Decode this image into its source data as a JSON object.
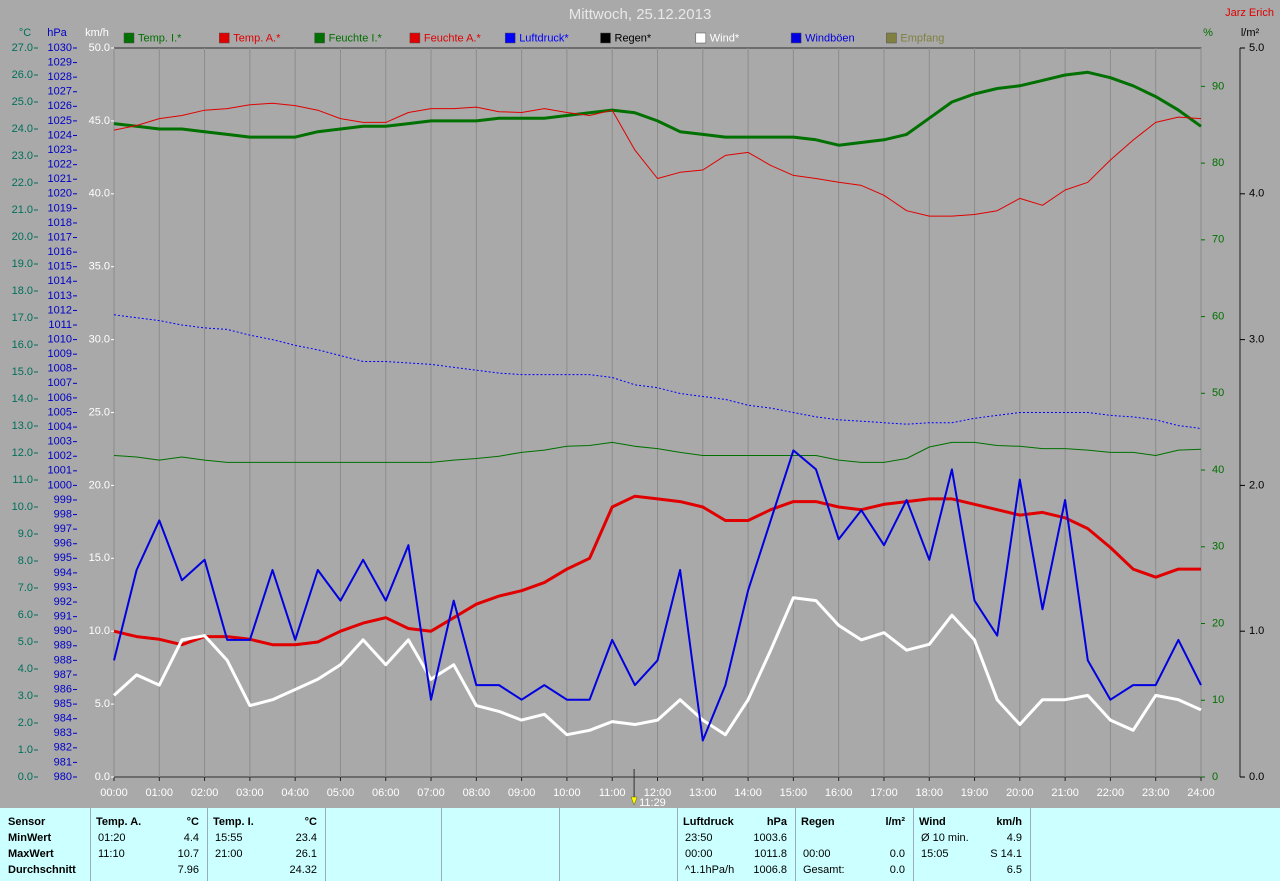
{
  "chart_data": {
    "type": "line",
    "title": "Mittwoch, 25.12.2013",
    "author": "Jarz Erich",
    "grid": "x",
    "xlim": [
      0,
      24
    ],
    "xticks": [
      {
        "value": 0,
        "label": "00:00"
      },
      {
        "value": 1,
        "label": "01:00"
      },
      {
        "value": 2,
        "label": "02:00"
      },
      {
        "value": 3,
        "label": "03:00"
      },
      {
        "value": 4,
        "label": "04:00"
      },
      {
        "value": 5,
        "label": "05:00"
      },
      {
        "value": 6,
        "label": "06:00"
      },
      {
        "value": 7,
        "label": "07:00"
      },
      {
        "value": 8,
        "label": "08:00"
      },
      {
        "value": 9,
        "label": "09:00"
      },
      {
        "value": 10,
        "label": "10:00"
      },
      {
        "value": 11,
        "label": "11:00"
      },
      {
        "value": 12,
        "label": "12:00"
      },
      {
        "value": 13,
        "label": "13:00"
      },
      {
        "value": 14,
        "label": "14:00"
      },
      {
        "value": 15,
        "label": "15:00"
      },
      {
        "value": 16,
        "label": "16:00"
      },
      {
        "value": 17,
        "label": "17:00"
      },
      {
        "value": 18,
        "label": "18:00"
      },
      {
        "value": 19,
        "label": "19:00"
      },
      {
        "value": 20,
        "label": "20:00"
      },
      {
        "value": 21,
        "label": "21:00"
      },
      {
        "value": 22,
        "label": "22:00"
      },
      {
        "value": 23,
        "label": "23:00"
      },
      {
        "value": 24,
        "label": "24:00"
      }
    ],
    "cursor": {
      "value": 11.4833,
      "label": "11:29"
    },
    "x": [
      0,
      0.5,
      1,
      1.5,
      2,
      2.5,
      3,
      3.5,
      4,
      4.5,
      5,
      5.5,
      6,
      6.5,
      7,
      7.5,
      8,
      8.5,
      9,
      9.5,
      10,
      10.5,
      11,
      11.5,
      12,
      12.5,
      13,
      13.5,
      14,
      14.5,
      15,
      15.5,
      16,
      16.5,
      17,
      17.5,
      18,
      18.5,
      19,
      19.5,
      20,
      20.5,
      21,
      21.5,
      22,
      22.5,
      23,
      23.5,
      24
    ],
    "axes": [
      {
        "title": "°C",
        "side": "left",
        "color": "#006f5a",
        "lim": [
          0,
          27
        ],
        "ticks": [
          {
            "value": 0,
            "label": "0.0"
          },
          {
            "value": 1,
            "label": "1.0"
          },
          {
            "value": 2,
            "label": "2.0"
          },
          {
            "value": 3,
            "label": "3.0"
          },
          {
            "value": 4,
            "label": "4.0"
          },
          {
            "value": 5,
            "label": "5.0"
          },
          {
            "value": 6,
            "label": "6.0"
          },
          {
            "value": 7,
            "label": "7.0"
          },
          {
            "value": 8,
            "label": "8.0"
          },
          {
            "value": 9,
            "label": "9.0"
          },
          {
            "value": 10,
            "label": "10.0"
          },
          {
            "value": 11,
            "label": "11.0"
          },
          {
            "value": 12,
            "label": "12.0"
          },
          {
            "value": 13,
            "label": "13.0"
          },
          {
            "value": 14,
            "label": "14.0"
          },
          {
            "value": 15,
            "label": "15.0"
          },
          {
            "value": 16,
            "label": "16.0"
          },
          {
            "value": 17,
            "label": "17.0"
          },
          {
            "value": 18,
            "label": "18.0"
          },
          {
            "value": 19,
            "label": "19.0"
          },
          {
            "value": 20,
            "label": "20.0"
          },
          {
            "value": 21,
            "label": "21.0"
          },
          {
            "value": 22,
            "label": "22.0"
          },
          {
            "value": 23,
            "label": "23.0"
          },
          {
            "value": 24,
            "label": "24.0"
          },
          {
            "value": 25,
            "label": "25.0"
          },
          {
            "value": 26,
            "label": "26.0"
          },
          {
            "value": 27,
            "label": "27.0"
          }
        ]
      },
      {
        "title": "hPa",
        "side": "left",
        "color": "#0000c8",
        "lim": [
          980,
          1030
        ],
        "ticks": [
          980,
          981,
          982,
          983,
          984,
          985,
          986,
          987,
          988,
          989,
          990,
          991,
          992,
          993,
          994,
          995,
          996,
          997,
          998,
          999,
          1000,
          1001,
          1002,
          1003,
          1004,
          1005,
          1006,
          1007,
          1008,
          1009,
          1010,
          1011,
          1012,
          1013,
          1014,
          1015,
          1016,
          1017,
          1018,
          1019,
          1020,
          1021,
          1022,
          1023,
          1024,
          1025,
          1026,
          1027,
          1028,
          1029,
          1030
        ]
      },
      {
        "title": "km/h",
        "side": "left",
        "color": "#ffffff",
        "lim": [
          0,
          50
        ],
        "ticks": [
          {
            "value": 0,
            "label": "0.0"
          },
          {
            "value": 5,
            "label": "5.0"
          },
          {
            "value": 10,
            "label": "10.0"
          },
          {
            "value": 15,
            "label": "15.0"
          },
          {
            "value": 20,
            "label": "20.0"
          },
          {
            "value": 25,
            "label": "25.0"
          },
          {
            "value": 30,
            "label": "30.0"
          },
          {
            "value": 35,
            "label": "35.0"
          },
          {
            "value": 40,
            "label": "40.0"
          },
          {
            "value": 45,
            "label": "45.0"
          },
          {
            "value": 50,
            "label": "50.0"
          }
        ]
      },
      {
        "title": "%",
        "side": "right",
        "color": "#007000",
        "lim": [
          0,
          95
        ],
        "ticks": [
          0,
          10,
          20,
          30,
          40,
          50,
          60,
          70,
          80,
          90
        ]
      },
      {
        "title": "l/m²",
        "side": "right",
        "color": "#000000",
        "lim": [
          0,
          5
        ],
        "ticks": [
          {
            "value": 0,
            "label": "0.0"
          },
          {
            "value": 1,
            "label": "1.0"
          },
          {
            "value": 2,
            "label": "2.0"
          },
          {
            "value": 3,
            "label": "3.0"
          },
          {
            "value": 4,
            "label": "4.0"
          },
          {
            "value": 5,
            "label": "5.0"
          }
        ]
      }
    ],
    "series": [
      {
        "name": "Temp. I.*",
        "color": "#007000",
        "axis": 0,
        "width": 3,
        "values": [
          24.2,
          24.1,
          24.0,
          24.0,
          23.9,
          23.8,
          23.7,
          23.7,
          23.7,
          23.9,
          24.0,
          24.1,
          24.1,
          24.2,
          24.3,
          24.3,
          24.3,
          24.4,
          24.4,
          24.4,
          24.5,
          24.6,
          24.7,
          24.6,
          24.3,
          23.9,
          23.8,
          23.7,
          23.7,
          23.7,
          23.7,
          23.6,
          23.4,
          23.5,
          23.6,
          23.8,
          24.4,
          25.0,
          25.3,
          25.5,
          25.6,
          25.8,
          26.0,
          26.1,
          25.9,
          25.6,
          25.2,
          24.7,
          24.1
        ]
      },
      {
        "name": "Temp. A.*",
        "color": "#e00000",
        "axis": 0,
        "width": 3,
        "values": [
          5.4,
          5.2,
          5.1,
          4.9,
          5.2,
          5.2,
          5.1,
          4.9,
          4.9,
          5.0,
          5.4,
          5.7,
          5.9,
          5.5,
          5.4,
          5.9,
          6.4,
          6.7,
          6.9,
          7.2,
          7.7,
          8.1,
          10.0,
          10.4,
          10.3,
          10.2,
          10.0,
          9.5,
          9.5,
          9.9,
          10.2,
          10.2,
          10.0,
          9.9,
          10.1,
          10.2,
          10.3,
          10.3,
          10.1,
          9.9,
          9.7,
          9.8,
          9.6,
          9.2,
          8.5,
          7.7,
          7.4,
          7.7,
          7.7
        ]
      },
      {
        "name": "Feuchte I.*",
        "color": "#007000",
        "axis": 3,
        "width": 1,
        "values": [
          41.9,
          41.7,
          41.3,
          41.7,
          41.3,
          41.0,
          41.0,
          41.0,
          41.0,
          41.0,
          41.0,
          41.0,
          41.0,
          41.0,
          41.0,
          41.3,
          41.5,
          41.8,
          42.3,
          42.6,
          43.1,
          43.2,
          43.6,
          43.1,
          42.8,
          42.3,
          41.9,
          41.9,
          41.9,
          41.9,
          41.9,
          41.9,
          41.3,
          41.0,
          41.0,
          41.5,
          43.0,
          43.6,
          43.6,
          43.2,
          43.1,
          42.8,
          42.8,
          42.6,
          42.3,
          42.3,
          41.9,
          42.6,
          42.7
        ]
      },
      {
        "name": "Feuchte A.*",
        "color": "#e00000",
        "axis": 3,
        "width": 1,
        "values": [
          84.3,
          84.9,
          85.8,
          86.2,
          86.9,
          87.1,
          87.6,
          87.8,
          87.5,
          86.9,
          85.8,
          85.3,
          85.3,
          86.6,
          87.1,
          87.1,
          87.3,
          86.7,
          86.6,
          87.1,
          86.6,
          86.2,
          86.9,
          81.7,
          78.0,
          78.8,
          79.1,
          81.0,
          81.4,
          79.7,
          78.4,
          78.0,
          77.5,
          77.1,
          75.8,
          73.8,
          73.1,
          73.1,
          73.3,
          73.8,
          75.4,
          74.5,
          76.5,
          77.5,
          80.4,
          83.0,
          85.3,
          86.0,
          85.8
        ]
      },
      {
        "name": "Luftdruck*",
        "color": "#0000ff",
        "axis": 1,
        "width": 1,
        "dash": true,
        "values": [
          1011.7,
          1011.5,
          1011.3,
          1011.0,
          1010.8,
          1010.7,
          1010.3,
          1010.0,
          1009.6,
          1009.3,
          1008.9,
          1008.5,
          1008.5,
          1008.4,
          1008.3,
          1008.1,
          1007.9,
          1007.7,
          1007.6,
          1007.6,
          1007.6,
          1007.6,
          1007.4,
          1006.9,
          1006.7,
          1006.3,
          1006.1,
          1005.9,
          1005.5,
          1005.3,
          1005.0,
          1004.7,
          1004.5,
          1004.4,
          1004.3,
          1004.2,
          1004.3,
          1004.3,
          1004.6,
          1004.8,
          1005.0,
          1005.0,
          1005.0,
          1005.0,
          1004.8,
          1004.7,
          1004.5,
          1004.1,
          1003.9
        ]
      },
      {
        "name": "Regen*",
        "color": "#000000"
      },
      {
        "name": "Wind*",
        "color": "#ffffff",
        "axis": 2,
        "width": 3,
        "values": [
          5.6,
          7.0,
          6.3,
          9.4,
          9.7,
          8.0,
          4.9,
          5.3,
          6.0,
          6.7,
          7.7,
          9.4,
          7.7,
          9.4,
          6.7,
          7.7,
          4.9,
          4.5,
          3.9,
          4.3,
          2.9,
          3.2,
          3.8,
          3.6,
          3.9,
          5.3,
          3.9,
          2.9,
          5.3,
          8.7,
          12.3,
          12.1,
          10.4,
          9.4,
          9.9,
          8.7,
          9.1,
          11.1,
          9.4,
          5.3,
          3.6,
          5.3,
          5.3,
          5.6,
          3.9,
          3.2,
          5.6,
          5.3,
          4.6
        ]
      },
      {
        "name": "Windböen",
        "color": "#0000e0",
        "axis": 2,
        "width": 2,
        "values": [
          8.0,
          14.2,
          17.6,
          13.5,
          14.9,
          9.4,
          9.4,
          14.2,
          9.4,
          14.2,
          12.1,
          14.9,
          12.1,
          15.9,
          5.3,
          12.1,
          6.3,
          6.3,
          5.3,
          6.3,
          5.3,
          5.3,
          9.4,
          6.3,
          8.0,
          14.2,
          2.5,
          6.3,
          12.8,
          17.6,
          22.4,
          21.1,
          16.3,
          18.3,
          15.9,
          19.0,
          14.9,
          21.1,
          12.1,
          9.7,
          20.4,
          11.5,
          19.0,
          8.0,
          5.3,
          6.3,
          6.3,
          9.4,
          6.3
        ]
      },
      {
        "name": "Empfang",
        "color": "#808040"
      }
    ]
  },
  "table": {
    "corner": "Sensor",
    "row_labels": [
      "MinWert",
      "MaxWert",
      "Durchschnitt"
    ],
    "columns": [
      {
        "title": "Temp. A.",
        "unit": "°C",
        "rows": [
          {
            "time": "01:20",
            "value": "4.4"
          },
          {
            "time": "11:10",
            "value": "10.7"
          },
          {
            "value": "7.96"
          }
        ]
      },
      {
        "title": "Temp. I.",
        "unit": "°C",
        "rows": [
          {
            "time": "15:55",
            "value": "23.4"
          },
          {
            "time": "21:00",
            "value": "26.1"
          },
          {
            "value": "24.32"
          }
        ]
      },
      {
        "title": "Luftdruck",
        "unit": "hPa",
        "rows": [
          {
            "time": "23:50",
            "value": "1003.6"
          },
          {
            "time": "00:00",
            "value": "1011.8"
          },
          {
            "time": "^1.1hPa/h",
            "value": "1006.8"
          }
        ]
      },
      {
        "title": "Regen",
        "unit": "l/m²",
        "rows": [
          {},
          {
            "time": "00:00",
            "value": "0.0"
          },
          {
            "time": "Gesamt:",
            "value": "0.0"
          }
        ]
      },
      {
        "title": "Wind",
        "unit": "km/h",
        "rows": [
          {
            "time": "Ø 10 min.",
            "value": "4.9"
          },
          {
            "time": "15:05",
            "value": "S 14.1"
          },
          {
            "value": "6.5"
          }
        ]
      }
    ]
  }
}
